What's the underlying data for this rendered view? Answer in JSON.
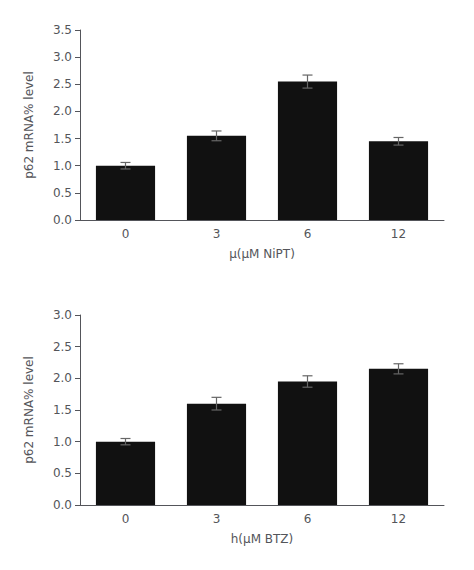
{
  "chart_data": [
    {
      "type": "bar",
      "categories": [
        "0",
        "3",
        "6",
        "12"
      ],
      "values": [
        1.0,
        1.55,
        2.55,
        1.45
      ],
      "errors": [
        0.06,
        0.09,
        0.12,
        0.07
      ],
      "color": "#111111",
      "xlabel": "µ(µM NiPT)",
      "ylabel": "p62 mRNA% level",
      "ylim": [
        0.0,
        3.5
      ],
      "yticks": [
        {
          "value": 0,
          "label": "0.0"
        },
        0.5,
        {
          "value": 1,
          "label": "1.0"
        },
        1.5,
        {
          "value": 2,
          "label": "2.0"
        },
        2.5,
        {
          "value": 3,
          "label": "3.0"
        },
        3.5
      ],
      "grid": false
    },
    {
      "type": "bar",
      "categories": [
        "0",
        "3",
        "6",
        "12"
      ],
      "values": [
        1.0,
        1.6,
        1.95,
        2.15
      ],
      "errors": [
        0.05,
        0.1,
        0.09,
        0.08
      ],
      "color": "#111111",
      "xlabel": "h(µM BTZ)",
      "ylabel": "p62 mRNA% level",
      "ylim": [
        0.0,
        3.0
      ],
      "yticks": [
        {
          "value": 0,
          "label": "0.0"
        },
        0.5,
        {
          "value": 1,
          "label": "1.0"
        },
        1.5,
        {
          "value": 2,
          "label": "2.0"
        },
        2.5,
        {
          "value": 3,
          "label": "3.0"
        }
      ],
      "grid": false
    }
  ]
}
